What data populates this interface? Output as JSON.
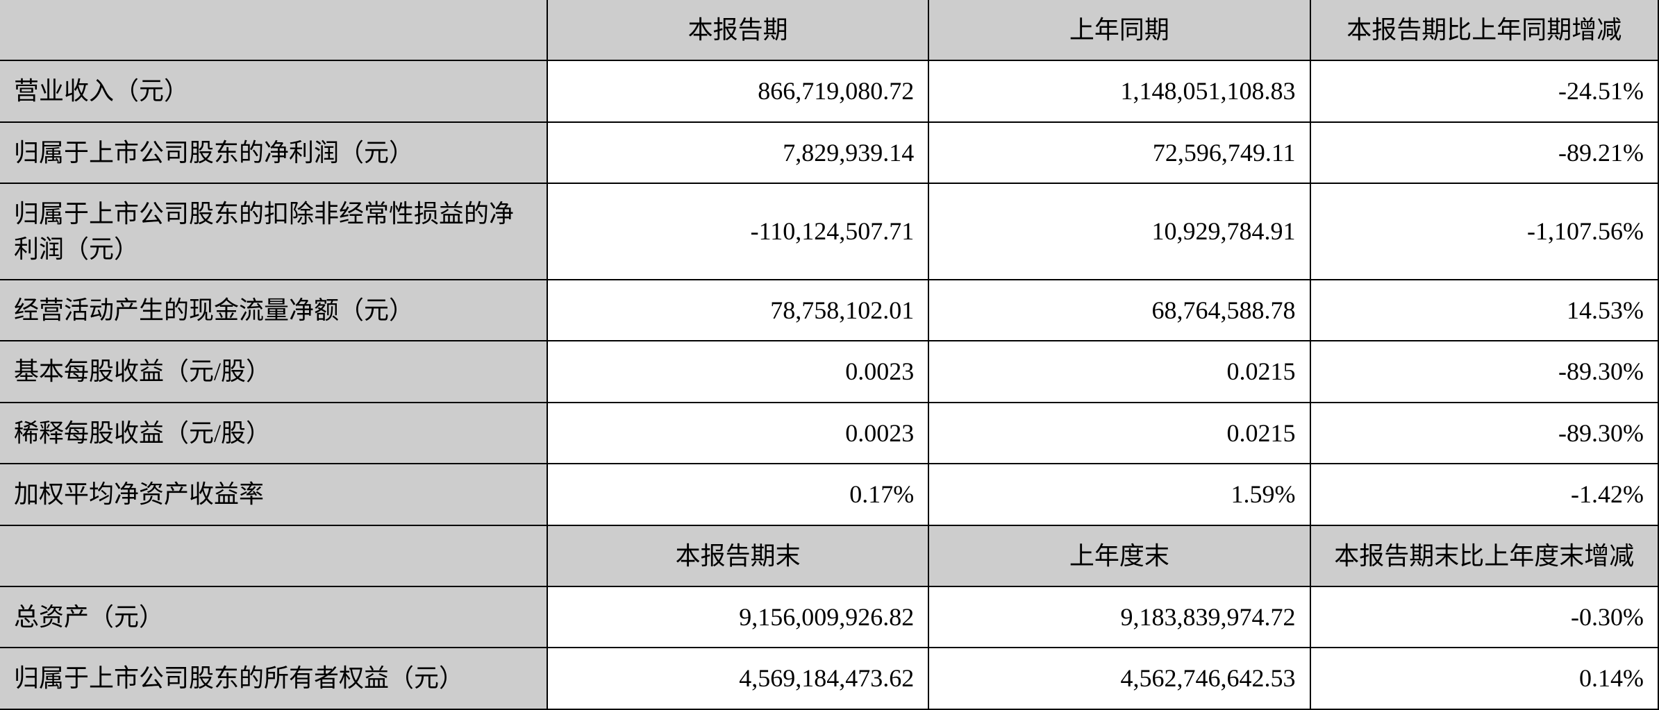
{
  "table": {
    "colors": {
      "header_bg": "#cdcdcd",
      "cell_bg": "#ffffff",
      "border": "#000000",
      "text": "#000000"
    },
    "fontsize": 36,
    "border_width": 2,
    "column_widths_pct": [
      33,
      23,
      23,
      21
    ],
    "header1": {
      "blank": "",
      "c1": "本报告期",
      "c2": "上年同期",
      "c3": "本报告期比上年同期增减"
    },
    "rows1": [
      {
        "label": "营业收入（元）",
        "v1": "866,719,080.72",
        "v2": "1,148,051,108.83",
        "v3": "-24.51%"
      },
      {
        "label": "归属于上市公司股东的净利润（元）",
        "v1": "7,829,939.14",
        "v2": "72,596,749.11",
        "v3": "-89.21%"
      },
      {
        "label": "归属于上市公司股东的扣除非经常性损益的净利润（元）",
        "v1": "-110,124,507.71",
        "v2": "10,929,784.91",
        "v3": "-1,107.56%"
      },
      {
        "label": "经营活动产生的现金流量净额（元）",
        "v1": "78,758,102.01",
        "v2": "68,764,588.78",
        "v3": "14.53%"
      },
      {
        "label": "基本每股收益（元/股）",
        "v1": "0.0023",
        "v2": "0.0215",
        "v3": "-89.30%"
      },
      {
        "label": "稀释每股收益（元/股）",
        "v1": "0.0023",
        "v2": "0.0215",
        "v3": "-89.30%"
      },
      {
        "label": "加权平均净资产收益率",
        "v1": "0.17%",
        "v2": "1.59%",
        "v3": "-1.42%"
      }
    ],
    "header2": {
      "blank": "",
      "c1": "本报告期末",
      "c2": "上年度末",
      "c3": "本报告期末比上年度末增减"
    },
    "rows2": [
      {
        "label": "总资产（元）",
        "v1": "9,156,009,926.82",
        "v2": "9,183,839,974.72",
        "v3": "-0.30%"
      },
      {
        "label": "归属于上市公司股东的所有者权益（元）",
        "v1": "4,569,184,473.62",
        "v2": "4,562,746,642.53",
        "v3": "0.14%"
      }
    ]
  }
}
